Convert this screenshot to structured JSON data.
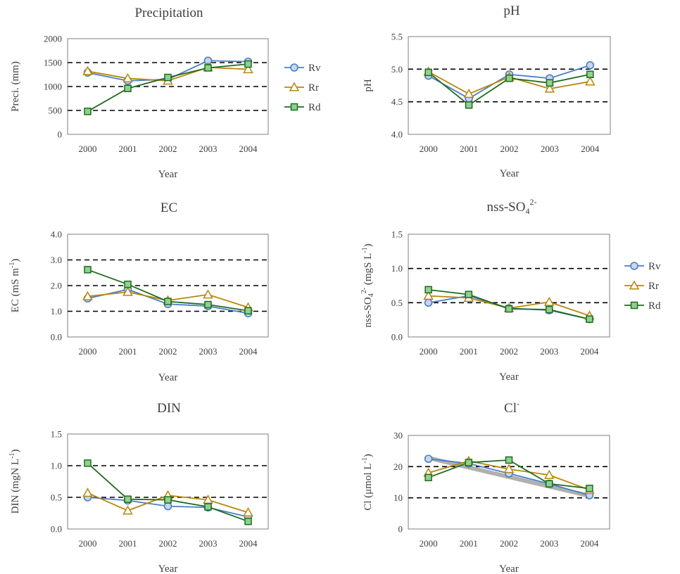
{
  "chart_data": [
    {
      "type": "line",
      "title": "Precipitation",
      "xlabel": "Year",
      "ylabel": "Preci. (mm)",
      "categories": [
        "2000",
        "2001",
        "2002",
        "2003",
        "2004"
      ],
      "ylim": [
        0,
        2000
      ],
      "yticks": [
        "0",
        "500",
        "1000",
        "1500",
        "2000"
      ],
      "reference_lines": [
        500,
        1000,
        1500
      ],
      "legend": true,
      "series": [
        {
          "name": "Rv",
          "marker": "circle",
          "color": "#4a7ec7",
          "fill": "#c9d6ea",
          "values": [
            1290,
            1120,
            1150,
            1540,
            1520
          ]
        },
        {
          "name": "Rr",
          "marker": "triangle",
          "color": "#b8860b",
          "fill": "#ffffff",
          "values": [
            1320,
            1170,
            1120,
            1400,
            1360
          ]
        },
        {
          "name": "Rd",
          "marker": "square",
          "color": "#1f6b1f",
          "fill": "#8fd18f",
          "values": [
            480,
            960,
            1190,
            1390,
            1470
          ]
        }
      ]
    },
    {
      "type": "line",
      "title": "pH",
      "xlabel": "Year",
      "ylabel": "pH",
      "categories": [
        "2000",
        "2001",
        "2002",
        "2003",
        "2004"
      ],
      "ylim": [
        4.0,
        5.5
      ],
      "yticks": [
        "4.0",
        "4.5",
        "5.0",
        "5.5"
      ],
      "reference_lines": [
        4.5,
        5.0
      ],
      "legend": false,
      "series": [
        {
          "name": "Rv",
          "marker": "circle",
          "color": "#4a7ec7",
          "fill": "#c9d6ea",
          "values": [
            4.9,
            4.55,
            4.92,
            4.86,
            5.06
          ]
        },
        {
          "name": "Rr",
          "marker": "triangle",
          "color": "#b8860b",
          "fill": "#ffffff",
          "values": [
            4.96,
            4.62,
            4.88,
            4.7,
            4.81
          ]
        },
        {
          "name": "Rd",
          "marker": "square",
          "color": "#1f6b1f",
          "fill": "#8fd18f",
          "values": [
            4.95,
            4.45,
            4.86,
            4.79,
            4.92
          ]
        }
      ]
    },
    {
      "type": "line",
      "title": "EC",
      "xlabel": "Year",
      "ylabel": "EC (mS m",
      "ylabel_sup": "-1",
      "ylabel_tail": ")",
      "categories": [
        "2000",
        "2001",
        "2002",
        "2003",
        "2004"
      ],
      "ylim": [
        0,
        4
      ],
      "yticks": [
        "0.0",
        "1.0",
        "2.0",
        "3.0",
        "4.0"
      ],
      "reference_lines": [
        1,
        2,
        3
      ],
      "legend": false,
      "series": [
        {
          "name": "Rv",
          "marker": "circle",
          "color": "#4a7ec7",
          "fill": "#c9d6ea",
          "values": [
            1.5,
            1.85,
            1.28,
            1.2,
            0.92
          ]
        },
        {
          "name": "Rr",
          "marker": "triangle",
          "color": "#b8860b",
          "fill": "#ffffff",
          "values": [
            1.58,
            1.75,
            1.42,
            1.65,
            1.15
          ]
        },
        {
          "name": "Rd",
          "marker": "square",
          "color": "#1f6b1f",
          "fill": "#8fd18f",
          "values": [
            2.62,
            2.05,
            1.38,
            1.26,
            1.02
          ]
        }
      ]
    },
    {
      "type": "line",
      "title": "nss-SO",
      "title_sub": "4",
      "title_sup": "2-",
      "xlabel": "Year",
      "ylabel": "nss-SO",
      "ylabel_sub": "4",
      "ylabel_sup": "2-",
      "ylabel_tail": " (mgS L",
      "ylabel_sup2": "-1",
      "ylabel_tail2": ")",
      "categories": [
        "2000",
        "2001",
        "2002",
        "2003",
        "2004"
      ],
      "ylim": [
        0,
        1.5
      ],
      "yticks": [
        "0.0",
        "0.5",
        "1.0",
        "1.5"
      ],
      "reference_lines": [
        0.5,
        1.0
      ],
      "legend": true,
      "series": [
        {
          "name": "Rv",
          "marker": "circle",
          "color": "#4a7ec7",
          "fill": "#c9d6ea",
          "values": [
            0.5,
            0.6,
            0.42,
            0.39,
            0.26
          ]
        },
        {
          "name": "Rr",
          "marker": "triangle",
          "color": "#b8860b",
          "fill": "#ffffff",
          "values": [
            0.6,
            0.57,
            0.42,
            0.51,
            0.31
          ]
        },
        {
          "name": "Rd",
          "marker": "square",
          "color": "#1f6b1f",
          "fill": "#8fd18f",
          "values": [
            0.69,
            0.62,
            0.41,
            0.4,
            0.26
          ]
        }
      ]
    },
    {
      "type": "line",
      "title": "DIN",
      "xlabel": "Year",
      "ylabel": "DIN (mgN L",
      "ylabel_sup": "-1",
      "ylabel_tail": ")",
      "categories": [
        "2000",
        "2001",
        "2002",
        "2003",
        "2004"
      ],
      "ylim": [
        0,
        1.5
      ],
      "yticks": [
        "0.0",
        "0.5",
        "1.0",
        "1.5"
      ],
      "reference_lines": [
        0.5,
        1.0
      ],
      "legend": false,
      "series": [
        {
          "name": "Rv",
          "marker": "circle",
          "color": "#4a7ec7",
          "fill": "#c9d6ea",
          "values": [
            0.5,
            0.45,
            0.36,
            0.34,
            0.19
          ]
        },
        {
          "name": "Rr",
          "marker": "triangle",
          "color": "#b8860b",
          "fill": "#ffffff",
          "values": [
            0.57,
            0.29,
            0.53,
            0.46,
            0.26
          ]
        },
        {
          "name": "Rd",
          "marker": "square",
          "color": "#1f6b1f",
          "fill": "#8fd18f",
          "values": [
            1.04,
            0.47,
            0.46,
            0.35,
            0.12
          ]
        }
      ]
    },
    {
      "type": "line",
      "title": "Cl",
      "title_sup": "-",
      "xlabel": "Year",
      "ylabel": "Cl (μmol L",
      "ylabel_sup": "-1",
      "ylabel_tail": ")",
      "categories": [
        "2000",
        "2001",
        "2002",
        "2003",
        "2004"
      ],
      "ylim": [
        0,
        30
      ],
      "yticks": [
        "0",
        "10",
        "20",
        "30"
      ],
      "reference_lines": [
        10,
        20
      ],
      "legend": false,
      "trendline": {
        "color": "#b0b0b0",
        "from": 22.8,
        "to": 10.6
      },
      "series": [
        {
          "name": "Rv",
          "marker": "circle",
          "color": "#4a7ec7",
          "fill": "#c9d6ea",
          "values": [
            22.5,
            21.0,
            17.8,
            14.5,
            10.8
          ]
        },
        {
          "name": "Rr",
          "marker": "triangle",
          "color": "#b8860b",
          "fill": "#ffffff",
          "values": [
            18.0,
            21.8,
            19.2,
            17.3,
            12.5
          ]
        },
        {
          "name": "Rd",
          "marker": "square",
          "color": "#1f6b1f",
          "fill": "#8fd18f",
          "values": [
            16.5,
            21.3,
            22.1,
            14.5,
            13.0
          ]
        }
      ]
    }
  ]
}
